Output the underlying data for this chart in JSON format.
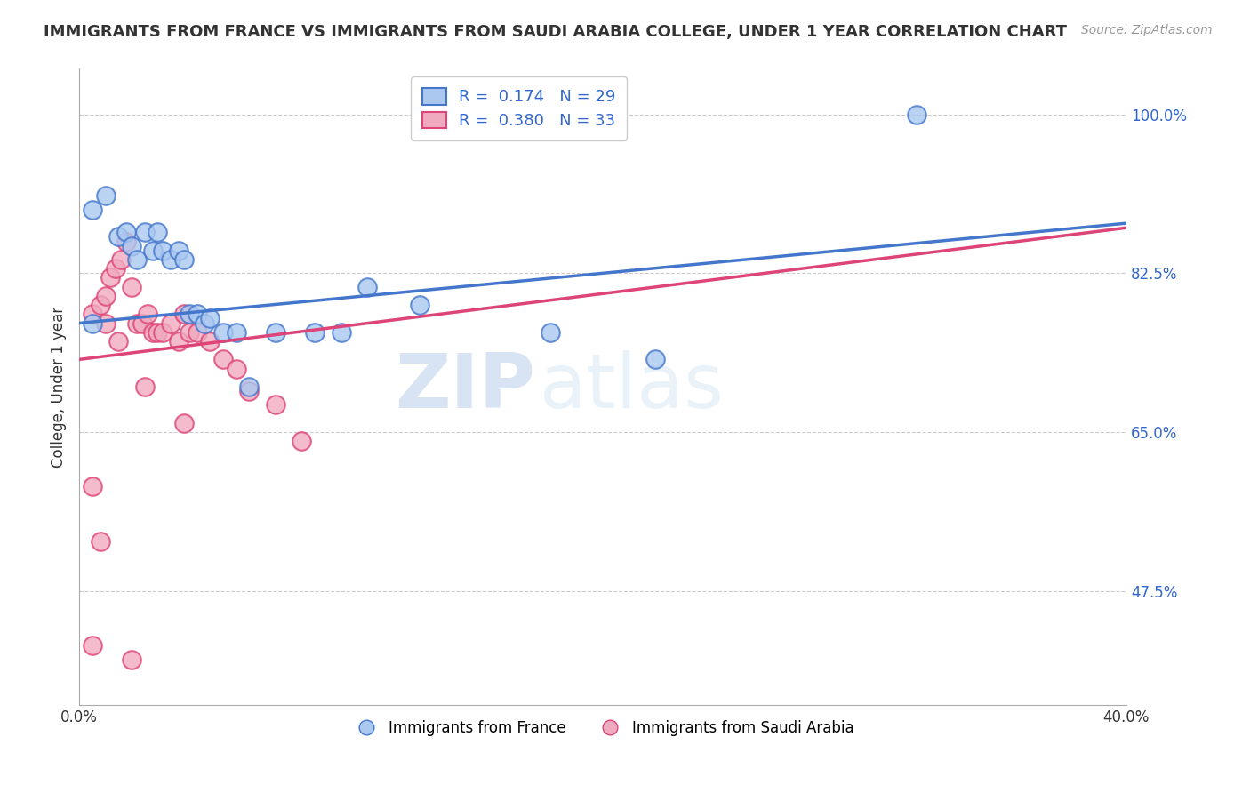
{
  "title": "IMMIGRANTS FROM FRANCE VS IMMIGRANTS FROM SAUDI ARABIA COLLEGE, UNDER 1 YEAR CORRELATION CHART",
  "source": "Source: ZipAtlas.com",
  "xlabel": "",
  "ylabel": "College, Under 1 year",
  "xlim": [
    0.0,
    0.4
  ],
  "ylim": [
    0.35,
    1.05
  ],
  "ytick_labels": [
    "100.0%",
    "82.5%",
    "65.0%",
    "47.5%"
  ],
  "ytick_values": [
    1.0,
    0.825,
    0.65,
    0.475
  ],
  "xtick_values": [
    0.0,
    0.05,
    0.1,
    0.15,
    0.2,
    0.25,
    0.3,
    0.35,
    0.4
  ],
  "r_france": 0.174,
  "n_france": 29,
  "r_saudi": 0.38,
  "n_saudi": 33,
  "color_france": "#aac8f0",
  "color_saudi": "#f0aac0",
  "color_france_line": "#4477cc",
  "color_saudi_line": "#dd4477",
  "legend_label_france": "Immigrants from France",
  "legend_label_saudi": "Immigrants from Saudi Arabia",
  "france_x": [
    0.005,
    0.01,
    0.015,
    0.018,
    0.02,
    0.022,
    0.025,
    0.028,
    0.03,
    0.032,
    0.035,
    0.038,
    0.04,
    0.042,
    0.045,
    0.048,
    0.05,
    0.055,
    0.06,
    0.065,
    0.075,
    0.09,
    0.1,
    0.11,
    0.13,
    0.18,
    0.22,
    0.32,
    0.005
  ],
  "france_y": [
    0.895,
    0.91,
    0.865,
    0.87,
    0.855,
    0.84,
    0.87,
    0.85,
    0.87,
    0.85,
    0.84,
    0.85,
    0.84,
    0.78,
    0.78,
    0.77,
    0.775,
    0.76,
    0.76,
    0.7,
    0.76,
    0.76,
    0.76,
    0.81,
    0.79,
    0.76,
    0.73,
    1.0,
    0.77
  ],
  "saudi_x": [
    0.005,
    0.008,
    0.01,
    0.012,
    0.014,
    0.016,
    0.018,
    0.02,
    0.022,
    0.024,
    0.026,
    0.028,
    0.03,
    0.032,
    0.035,
    0.038,
    0.04,
    0.042,
    0.045,
    0.05,
    0.055,
    0.06,
    0.065,
    0.075,
    0.085,
    0.01,
    0.015,
    0.025,
    0.04,
    0.005,
    0.008,
    0.005,
    0.02
  ],
  "saudi_y": [
    0.78,
    0.79,
    0.8,
    0.82,
    0.83,
    0.84,
    0.86,
    0.81,
    0.77,
    0.77,
    0.78,
    0.76,
    0.76,
    0.76,
    0.77,
    0.75,
    0.78,
    0.76,
    0.76,
    0.75,
    0.73,
    0.72,
    0.695,
    0.68,
    0.64,
    0.77,
    0.75,
    0.7,
    0.66,
    0.59,
    0.53,
    0.415,
    0.4
  ],
  "france_line_x": [
    0.0,
    0.4
  ],
  "france_line_y": [
    0.77,
    0.88
  ],
  "saudi_line_x": [
    0.0,
    0.4
  ],
  "saudi_line_y": [
    0.73,
    0.875
  ],
  "watermark_zip": "ZIP",
  "watermark_atlas": "atlas",
  "background_color": "#ffffff",
  "grid_color": "#cccccc"
}
